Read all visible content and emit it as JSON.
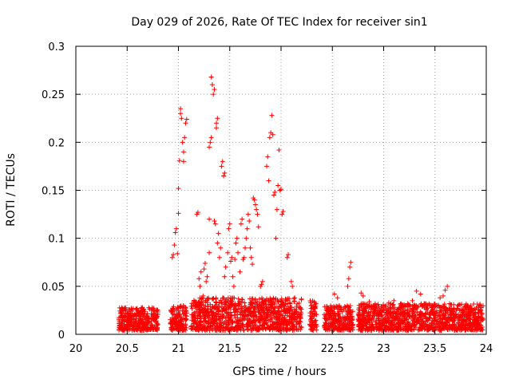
{
  "chart_data": {
    "type": "scatter",
    "title": "Day 029 of 2026, Rate Of TEC Index for receiver sin1",
    "xlabel": "GPS time / hours",
    "ylabel": "ROTI / TECUs",
    "xlim": [
      20,
      24
    ],
    "ylim": [
      0,
      0.3
    ],
    "xticks": [
      20,
      20.5,
      21,
      21.5,
      22,
      22.5,
      23,
      23.5,
      24
    ],
    "yticks": [
      0,
      0.05,
      0.1,
      0.15,
      0.2,
      0.25,
      0.3
    ],
    "xtick_labels": [
      "20",
      "20.5",
      "21",
      "21.5",
      "22",
      "22.5",
      "23",
      "23.5",
      "24"
    ],
    "ytick_labels": [
      "0",
      "0.05",
      "0.1",
      "0.15",
      "0.2",
      "0.25",
      "0.3"
    ],
    "grid": true,
    "marker": "+",
    "color": "#ff0000",
    "series": [
      {
        "name": "sin1",
        "points": [
          [
            20.94,
            0.08
          ],
          [
            20.95,
            0.083
          ],
          [
            20.96,
            0.093
          ],
          [
            20.97,
            0.106
          ],
          [
            20.98,
            0.11
          ],
          [
            20.99,
            0.084
          ],
          [
            21.0,
            0.126
          ],
          [
            21.0,
            0.152
          ],
          [
            21.01,
            0.181
          ],
          [
            21.02,
            0.23
          ],
          [
            21.02,
            0.235
          ],
          [
            21.03,
            0.225
          ],
          [
            21.04,
            0.2
          ],
          [
            21.05,
            0.18
          ],
          [
            21.05,
            0.19
          ],
          [
            21.06,
            0.205
          ],
          [
            21.07,
            0.22
          ],
          [
            21.08,
            0.224
          ],
          [
            21.18,
            0.125
          ],
          [
            21.19,
            0.127
          ],
          [
            21.2,
            0.058
          ],
          [
            21.21,
            0.05
          ],
          [
            21.22,
            0.065
          ],
          [
            21.24,
            0.04
          ],
          [
            21.25,
            0.068
          ],
          [
            21.26,
            0.074
          ],
          [
            21.27,
            0.055
          ],
          [
            21.28,
            0.06
          ],
          [
            21.3,
            0.085
          ],
          [
            21.3,
            0.12
          ],
          [
            21.3,
            0.195
          ],
          [
            21.31,
            0.2
          ],
          [
            21.32,
            0.205
          ],
          [
            21.32,
            0.268
          ],
          [
            21.33,
            0.26
          ],
          [
            21.34,
            0.25
          ],
          [
            21.35,
            0.255
          ],
          [
            21.35,
            0.118
          ],
          [
            21.36,
            0.115
          ],
          [
            21.37,
            0.215
          ],
          [
            21.37,
            0.22
          ],
          [
            21.38,
            0.225
          ],
          [
            21.38,
            0.095
          ],
          [
            21.39,
            0.105
          ],
          [
            21.4,
            0.08
          ],
          [
            21.41,
            0.09
          ],
          [
            21.42,
            0.175
          ],
          [
            21.43,
            0.18
          ],
          [
            21.44,
            0.165
          ],
          [
            21.45,
            0.168
          ],
          [
            21.45,
            0.06
          ],
          [
            21.46,
            0.07
          ],
          [
            21.48,
            0.085
          ],
          [
            21.49,
            0.11
          ],
          [
            21.5,
            0.115
          ],
          [
            21.51,
            0.076
          ],
          [
            21.52,
            0.08
          ],
          [
            21.53,
            0.06
          ],
          [
            21.54,
            0.05
          ],
          [
            21.55,
            0.078
          ],
          [
            21.56,
            0.095
          ],
          [
            21.57,
            0.1
          ],
          [
            21.58,
            0.085
          ],
          [
            21.6,
            0.065
          ],
          [
            21.61,
            0.115
          ],
          [
            21.62,
            0.12
          ],
          [
            21.63,
            0.078
          ],
          [
            21.64,
            0.08
          ],
          [
            21.65,
            0.09
          ],
          [
            21.66,
            0.1
          ],
          [
            21.67,
            0.11
          ],
          [
            21.68,
            0.125
          ],
          [
            21.69,
            0.118
          ],
          [
            21.7,
            0.09
          ],
          [
            21.71,
            0.08
          ],
          [
            21.72,
            0.073
          ],
          [
            21.73,
            0.142
          ],
          [
            21.74,
            0.14
          ],
          [
            21.75,
            0.135
          ],
          [
            21.76,
            0.13
          ],
          [
            21.77,
            0.125
          ],
          [
            21.78,
            0.112
          ],
          [
            21.8,
            0.05
          ],
          [
            21.81,
            0.052
          ],
          [
            21.82,
            0.055
          ],
          [
            21.86,
            0.175
          ],
          [
            21.87,
            0.185
          ],
          [
            21.88,
            0.16
          ],
          [
            21.89,
            0.205
          ],
          [
            21.9,
            0.21
          ],
          [
            21.91,
            0.228
          ],
          [
            21.92,
            0.208
          ],
          [
            21.93,
            0.145
          ],
          [
            21.94,
            0.148
          ],
          [
            21.95,
            0.1
          ],
          [
            21.96,
            0.13
          ],
          [
            21.97,
            0.155
          ],
          [
            21.98,
            0.192
          ],
          [
            21.99,
            0.15
          ],
          [
            22.0,
            0.151
          ],
          [
            22.01,
            0.125
          ],
          [
            22.02,
            0.128
          ],
          [
            22.06,
            0.08
          ],
          [
            22.07,
            0.083
          ],
          [
            22.1,
            0.055
          ],
          [
            22.11,
            0.05
          ],
          [
            22.65,
            0.05
          ],
          [
            22.66,
            0.058
          ],
          [
            22.67,
            0.07
          ],
          [
            22.68,
            0.075
          ],
          [
            22.52,
            0.042
          ],
          [
            22.55,
            0.038
          ],
          [
            22.78,
            0.043
          ],
          [
            22.8,
            0.04
          ],
          [
            22.86,
            0.034
          ],
          [
            22.9,
            0.03
          ],
          [
            23.05,
            0.033
          ],
          [
            23.1,
            0.035
          ],
          [
            23.28,
            0.035
          ],
          [
            23.32,
            0.045
          ],
          [
            23.36,
            0.042
          ],
          [
            23.4,
            0.032
          ],
          [
            23.55,
            0.038
          ],
          [
            23.58,
            0.04
          ],
          [
            23.6,
            0.046
          ],
          [
            23.62,
            0.05
          ]
        ]
      }
    ],
    "dense_bands": [
      {
        "x": [
          20.42,
          20.8
        ],
        "y": [
          0.004,
          0.028
        ]
      },
      {
        "x": [
          20.92,
          21.08
        ],
        "y": [
          0.004,
          0.03
        ]
      },
      {
        "x": [
          21.12,
          22.2
        ],
        "y": [
          0.004,
          0.038
        ]
      },
      {
        "x": [
          22.28,
          22.35
        ],
        "y": [
          0.004,
          0.036
        ]
      },
      {
        "x": [
          22.42,
          22.7
        ],
        "y": [
          0.004,
          0.03
        ]
      },
      {
        "x": [
          22.75,
          23.97
        ],
        "y": [
          0.004,
          0.032
        ]
      }
    ]
  }
}
